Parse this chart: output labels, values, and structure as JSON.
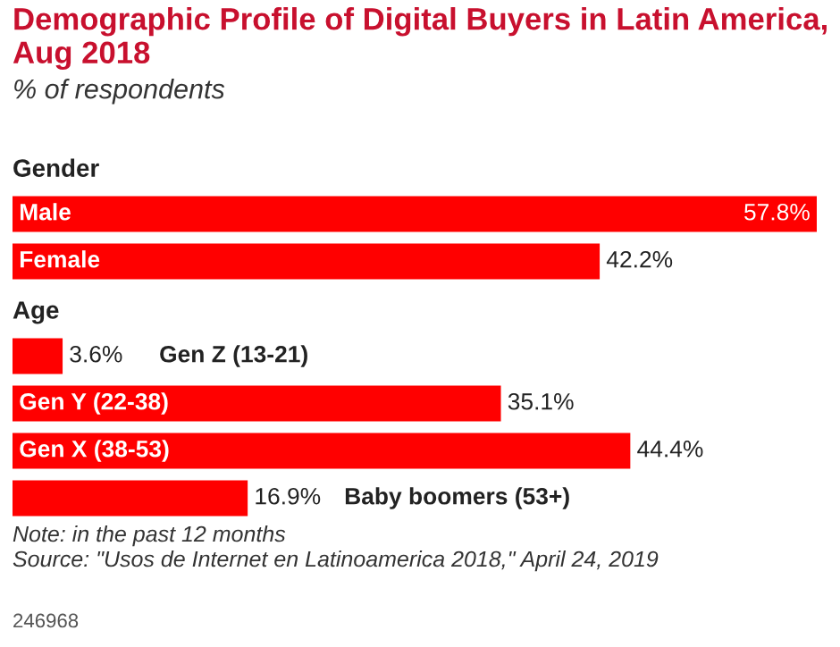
{
  "chart_data": {
    "type": "bar",
    "orientation": "horizontal",
    "title": "Demographic Profile of Digital Buyers in Latin America, Aug 2018",
    "subtitle": "% of respondents",
    "categories": [
      "Male",
      "Female",
      "Gen Z (13-21)",
      "Gen Y (22-38)",
      "Gen X (38-53)",
      "Baby boomers (53+)"
    ],
    "values": [
      57.8,
      42.2,
      3.6,
      35.1,
      44.4,
      16.9
    ],
    "value_labels": [
      "57.8%",
      "42.2%",
      "3.6%",
      "35.1%",
      "44.4%",
      "16.9%"
    ],
    "color": "#ff0000",
    "annotations": [
      "Gender",
      "Age",
      "Note: in the past 12 months",
      "Source: \"Usos de Internet en Latinoamerica 2018,\" April 24, 2019",
      "246968"
    ]
  }
}
